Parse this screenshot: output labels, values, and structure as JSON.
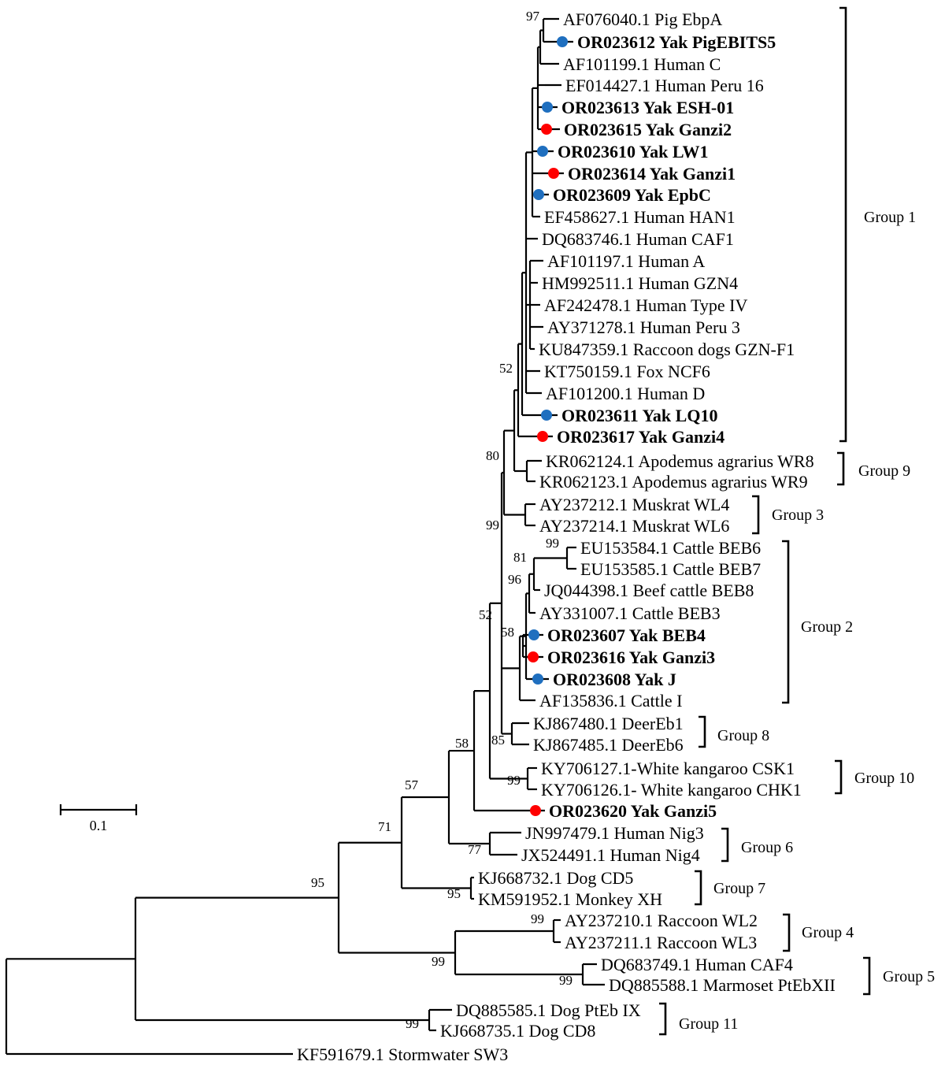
{
  "colors": {
    "line": "#000000",
    "dot_blue": "#1f6fbf",
    "dot_red": "#ff0000"
  },
  "scale_bar": {
    "label": "0.1"
  },
  "groups": [
    {
      "id": "g1",
      "label": "Group 1"
    },
    {
      "id": "g9",
      "label": "Group 9"
    },
    {
      "id": "g3",
      "label": "Group 3"
    },
    {
      "id": "g2",
      "label": "Group 2"
    },
    {
      "id": "g8",
      "label": "Group 8"
    },
    {
      "id": "g10",
      "label": "Group 10"
    },
    {
      "id": "g6",
      "label": "Group 6"
    },
    {
      "id": "g7",
      "label": "Group 7"
    },
    {
      "id": "g4",
      "label": "Group 4"
    },
    {
      "id": "g5",
      "label": "Group 5"
    },
    {
      "id": "g11",
      "label": "Group 11"
    }
  ],
  "taxa": [
    {
      "id": "t1",
      "label": "AF076040.1 Pig EbpA",
      "bold": false
    },
    {
      "id": "t2",
      "label": "OR023612 Yak PigEBITS5",
      "bold": true,
      "marker": "blue"
    },
    {
      "id": "t3",
      "label": "AF101199.1 Human C",
      "bold": false
    },
    {
      "id": "t4",
      "label": "EF014427.1 Human Peru 16",
      "bold": false
    },
    {
      "id": "t5",
      "label": "OR023613 Yak ESH-01",
      "bold": true,
      "marker": "blue"
    },
    {
      "id": "t6",
      "label": "OR023615 Yak Ganzi2",
      "bold": true,
      "marker": "red"
    },
    {
      "id": "t7",
      "label": "OR023610 Yak LW1",
      "bold": true,
      "marker": "blue"
    },
    {
      "id": "t8",
      "label": "OR023614 Yak Ganzi1",
      "bold": true,
      "marker": "red"
    },
    {
      "id": "t9",
      "label": "OR023609 Yak EpbC",
      "bold": true,
      "marker": "blue"
    },
    {
      "id": "t10",
      "label": "EF458627.1 Human HAN1",
      "bold": false
    },
    {
      "id": "t11",
      "label": "DQ683746.1 Human CAF1",
      "bold": false
    },
    {
      "id": "t12",
      "label": "AF101197.1 Human A",
      "bold": false
    },
    {
      "id": "t13",
      "label": "HM992511.1 Human GZN4",
      "bold": false
    },
    {
      "id": "t14",
      "label": "AF242478.1 Human Type IV",
      "bold": false
    },
    {
      "id": "t15",
      "label": "AY371278.1 Human Peru 3",
      "bold": false
    },
    {
      "id": "t16",
      "label": "KU847359.1 Raccoon dogs GZN-F1",
      "bold": false
    },
    {
      "id": "t17",
      "label": "KT750159.1 Fox NCF6",
      "bold": false
    },
    {
      "id": "t18",
      "label": "AF101200.1 Human D",
      "bold": false
    },
    {
      "id": "t19",
      "label": "OR023611 Yak LQ10",
      "bold": true,
      "marker": "blue"
    },
    {
      "id": "t20",
      "label": "OR023617 Yak Ganzi4",
      "bold": true,
      "marker": "red"
    },
    {
      "id": "t21",
      "label": "KR062124.1 Apodemus agrarius WR8",
      "bold": false
    },
    {
      "id": "t22",
      "label": "KR062123.1 Apodemus agrarius WR9",
      "bold": false
    },
    {
      "id": "t23",
      "label": "AY237212.1 Muskrat WL4",
      "bold": false
    },
    {
      "id": "t24",
      "label": "AY237214.1 Muskrat WL6",
      "bold": false
    },
    {
      "id": "t25",
      "label": "EU153584.1 Cattle BEB6",
      "bold": false
    },
    {
      "id": "t26",
      "label": "EU153585.1 Cattle BEB7",
      "bold": false
    },
    {
      "id": "t27",
      "label": "JQ044398.1 Beef cattle BEB8",
      "bold": false
    },
    {
      "id": "t28",
      "label": "AY331007.1 Cattle BEB3",
      "bold": false
    },
    {
      "id": "t29",
      "label": "OR023607 Yak BEB4",
      "bold": true,
      "marker": "blue"
    },
    {
      "id": "t30",
      "label": "OR023616 Yak Ganzi3",
      "bold": true,
      "marker": "red"
    },
    {
      "id": "t31",
      "label": "OR023608 Yak J",
      "bold": true,
      "marker": "blue"
    },
    {
      "id": "t32",
      "label": "AF135836.1 Cattle I",
      "bold": false
    },
    {
      "id": "t33",
      "label": "KJ867480.1 DeerEb1",
      "bold": false
    },
    {
      "id": "t34",
      "label": "KJ867485.1 DeerEb6",
      "bold": false
    },
    {
      "id": "t35",
      "label": "KY706127.1-White kangaroo CSK1",
      "bold": false
    },
    {
      "id": "t36",
      "label": "KY706126.1- White kangaroo CHK1",
      "bold": false
    },
    {
      "id": "t37",
      "label": "OR023620  Yak Ganzi5",
      "bold": true,
      "marker": "red"
    },
    {
      "id": "t38",
      "label": "JN997479.1 Human Nig3",
      "bold": false
    },
    {
      "id": "t39",
      "label": "JX524491.1 Human Nig4",
      "bold": false
    },
    {
      "id": "t40",
      "label": "KJ668732.1 Dog CD5",
      "bold": false
    },
    {
      "id": "t41",
      "label": "KM591952.1 Monkey XH",
      "bold": false
    },
    {
      "id": "t42",
      "label": "AY237210.1 Raccoon WL2",
      "bold": false
    },
    {
      "id": "t43",
      "label": "AY237211.1 Raccoon WL3",
      "bold": false
    },
    {
      "id": "t44",
      "label": "DQ683749.1 Human CAF4",
      "bold": false
    },
    {
      "id": "t45",
      "label": "DQ885588.1 Marmoset PtEbXII",
      "bold": false
    },
    {
      "id": "t46",
      "label": "DQ885585.1 Dog PtEb IX",
      "bold": false
    },
    {
      "id": "t47",
      "label": "KJ668735.1 Dog CD8",
      "bold": false
    },
    {
      "id": "t48",
      "label": "KF591679.1 Stormwater SW3",
      "bold": false
    }
  ],
  "bootstrap": [
    {
      "id": "b97",
      "value": "97"
    },
    {
      "id": "b52a",
      "value": "52"
    },
    {
      "id": "b80",
      "value": "80"
    },
    {
      "id": "b99a",
      "value": "99"
    },
    {
      "id": "b99b",
      "value": "99"
    },
    {
      "id": "b81",
      "value": "81"
    },
    {
      "id": "b96",
      "value": "96"
    },
    {
      "id": "b52b",
      "value": "52"
    },
    {
      "id": "b58a",
      "value": "58"
    },
    {
      "id": "b85",
      "value": "85"
    },
    {
      "id": "b58b",
      "value": "58"
    },
    {
      "id": "b99c",
      "value": "99"
    },
    {
      "id": "b57",
      "value": "57"
    },
    {
      "id": "b71",
      "value": "71"
    },
    {
      "id": "b77",
      "value": "77"
    },
    {
      "id": "b95a",
      "value": "95"
    },
    {
      "id": "b95b",
      "value": "95"
    },
    {
      "id": "b99d",
      "value": "99"
    },
    {
      "id": "b99e",
      "value": "99"
    },
    {
      "id": "b99f",
      "value": "99"
    },
    {
      "id": "b99g",
      "value": "99"
    }
  ]
}
